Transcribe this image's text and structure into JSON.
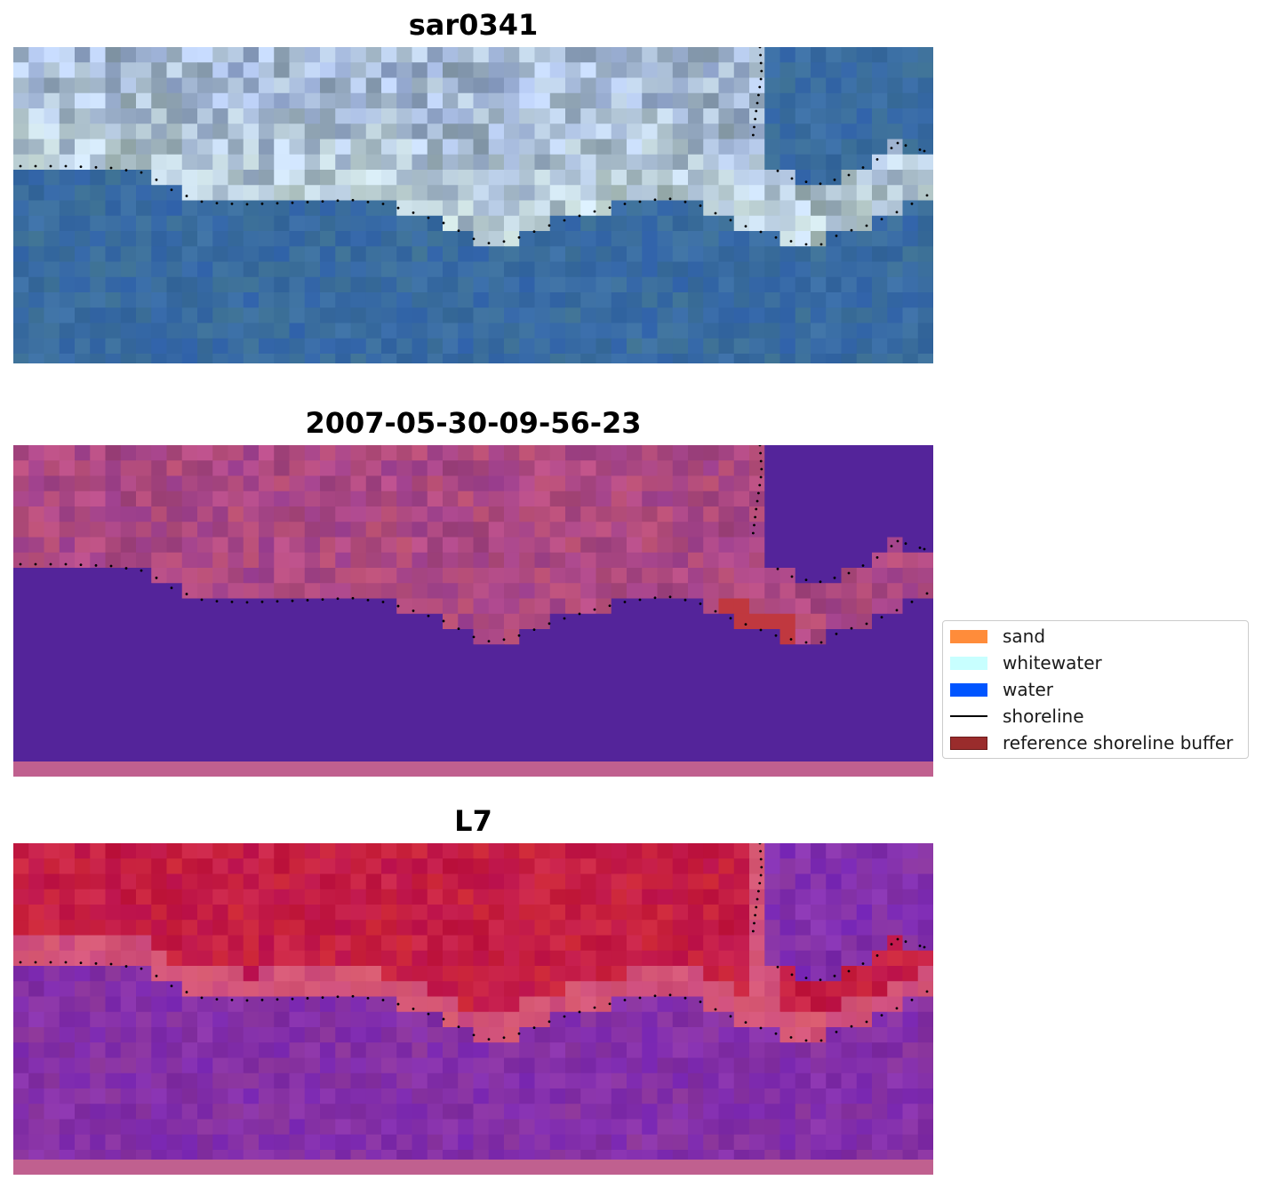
{
  "panels": [
    {
      "title": "sar0341",
      "style": "rgb"
    },
    {
      "title": "2007-05-30-09-56-23",
      "style": "classified"
    },
    {
      "title": "L7",
      "style": "index"
    }
  ],
  "legend": {
    "items": [
      {
        "label": "sand",
        "kind": "patch",
        "color": "#ff8c3a"
      },
      {
        "label": "whitewater",
        "kind": "patch",
        "color": "#c8ffff"
      },
      {
        "label": "water",
        "kind": "patch",
        "color": "#0055ff"
      },
      {
        "label": "shoreline",
        "kind": "line",
        "color": "#000000"
      },
      {
        "label": "reference shoreline buffer",
        "kind": "patch",
        "color": "#9a2c2c",
        "edge": "#6b1a1a"
      }
    ]
  },
  "colors": {
    "water_blue": "#3a6aa0",
    "classified_water": "#54249a",
    "classified_land": "#a8457f",
    "buffer_red": "#c0383f",
    "index_land": "#c4163f",
    "index_water": "#8a2ea0",
    "bottom_strip": "#c0608f"
  }
}
